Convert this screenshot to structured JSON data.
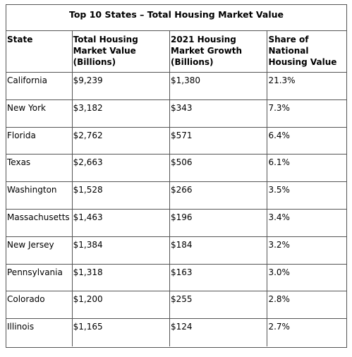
{
  "table": {
    "title": "Top 10 States – Total Housing Market Value",
    "headers": [
      "State",
      "Total Housing Market Value (Billions)",
      "2021 Housing Market Growth (Billions)",
      "Share of National Housing Value"
    ],
    "rows": [
      [
        "California",
        "$9,239",
        "$1,380",
        "21.3%"
      ],
      [
        "New York",
        "$3,182",
        "$343",
        "7.3%"
      ],
      [
        "Florida",
        "$2,762",
        "$571",
        "6.4%"
      ],
      [
        "Texas",
        "$2,663",
        "$506",
        "6.1%"
      ],
      [
        "Washington",
        "$1,528",
        "$266",
        "3.5%"
      ],
      [
        "Massachusetts",
        "$1,463",
        "$196",
        "3.4%"
      ],
      [
        "New Jersey",
        "$1,384",
        "$184",
        "3.2%"
      ],
      [
        "Pennsylvania",
        "$1,318",
        "$163",
        "3.0%"
      ],
      [
        "Colorado",
        "$1,200",
        "$255",
        "2.8%"
      ],
      [
        "Illinois",
        "$1,165",
        "$124",
        "2.7%"
      ]
    ]
  }
}
